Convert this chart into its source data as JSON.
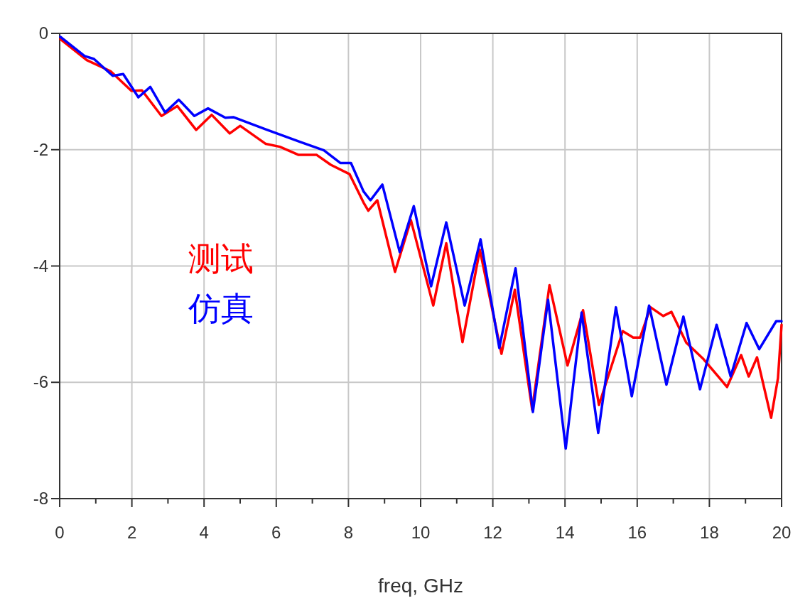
{
  "chart_data": {
    "type": "line",
    "xlabel": "freq, GHz",
    "xlim": [
      0,
      20
    ],
    "xticks": [
      0,
      2,
      4,
      6,
      8,
      10,
      12,
      14,
      16,
      18,
      20
    ],
    "ylim": [
      -8,
      0
    ],
    "yticks": [
      -8,
      -6,
      -4,
      -2,
      0
    ],
    "grid": true,
    "legend": "left",
    "marker": "none",
    "line_style": "solid",
    "series": [
      {
        "name": "测试",
        "color": "#ff0000",
        "x": [
          0.02,
          0.75,
          1.41,
          1.99,
          2.28,
          2.82,
          3.26,
          3.78,
          4.21,
          4.71,
          5.0,
          5.71,
          6.1,
          6.62,
          7.12,
          7.51,
          8.03,
          8.42,
          8.55,
          8.8,
          9.29,
          9.73,
          10.35,
          10.71,
          11.16,
          11.64,
          12.24,
          12.61,
          13.09,
          13.57,
          14.07,
          14.5,
          14.94,
          15.6,
          15.89,
          16.08,
          16.37,
          16.72,
          16.95,
          17.36,
          17.82,
          18.49,
          18.88,
          19.09,
          19.32,
          19.71,
          19.9,
          20.0
        ],
        "values": [
          -0.1,
          -0.46,
          -0.65,
          -0.99,
          -0.98,
          -1.42,
          -1.25,
          -1.66,
          -1.4,
          -1.72,
          -1.59,
          -1.9,
          -1.95,
          -2.09,
          -2.09,
          -2.26,
          -2.42,
          -2.91,
          -3.05,
          -2.87,
          -4.1,
          -3.21,
          -4.68,
          -3.61,
          -5.31,
          -3.72,
          -5.51,
          -4.41,
          -6.47,
          -4.33,
          -5.71,
          -4.76,
          -6.39,
          -5.12,
          -5.23,
          -5.23,
          -4.71,
          -4.86,
          -4.79,
          -5.32,
          -5.59,
          -6.08,
          -5.53,
          -5.9,
          -5.57,
          -6.61,
          -5.93,
          -5.01
        ]
      },
      {
        "name": "仿真",
        "color": "#0000ff",
        "x": [
          0.02,
          0.69,
          0.95,
          1.47,
          1.76,
          2.18,
          2.51,
          2.92,
          3.3,
          3.73,
          4.11,
          4.59,
          4.81,
          5.71,
          6.68,
          7.32,
          7.78,
          8.07,
          8.42,
          8.61,
          8.94,
          9.42,
          9.81,
          10.29,
          10.71,
          11.22,
          11.66,
          12.18,
          12.63,
          13.11,
          13.53,
          14.02,
          14.46,
          14.92,
          15.41,
          15.85,
          16.33,
          16.81,
          17.28,
          17.74,
          18.2,
          18.59,
          19.03,
          19.38,
          19.85,
          20.0
        ],
        "values": [
          -0.06,
          -0.39,
          -0.44,
          -0.73,
          -0.7,
          -1.1,
          -0.92,
          -1.36,
          -1.14,
          -1.42,
          -1.29,
          -1.45,
          -1.44,
          -1.65,
          -1.87,
          -2.01,
          -2.23,
          -2.23,
          -2.72,
          -2.87,
          -2.6,
          -3.76,
          -2.97,
          -4.35,
          -3.25,
          -4.68,
          -3.54,
          -5.41,
          -4.04,
          -6.51,
          -4.58,
          -7.14,
          -4.8,
          -6.87,
          -4.71,
          -6.24,
          -4.68,
          -6.04,
          -4.87,
          -6.12,
          -5.01,
          -5.9,
          -4.98,
          -5.43,
          -4.95,
          -4.95
        ]
      }
    ]
  }
}
